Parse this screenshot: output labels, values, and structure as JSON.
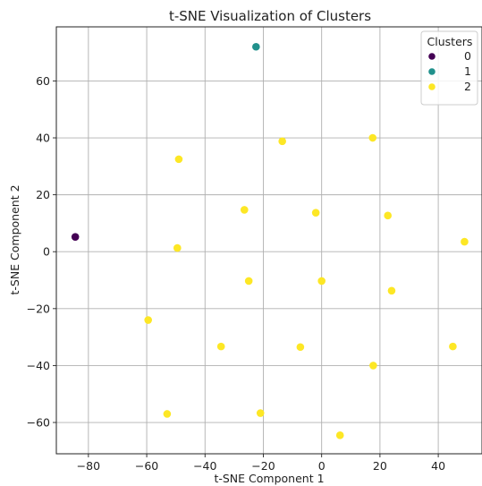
{
  "chart_data": {
    "type": "scatter",
    "title": "t-SNE Visualization of Clusters",
    "xlabel": "t-SNE Component 1",
    "ylabel": "t-SNE Component 2",
    "xlim": [
      -91,
      55
    ],
    "ylim": [
      -71,
      79
    ],
    "xticks": [
      -80,
      -60,
      -40,
      -20,
      0,
      20,
      40
    ],
    "yticks": [
      -60,
      -40,
      -20,
      0,
      20,
      40,
      60
    ],
    "xtick_labels": [
      "−80",
      "−60",
      "−40",
      "−20",
      "0",
      "20",
      "40"
    ],
    "ytick_labels": [
      "−60",
      "−40",
      "−20",
      "0",
      "20",
      "40",
      "60"
    ],
    "grid": true,
    "legend": {
      "title": "Clusters",
      "placement": "top-right"
    },
    "series": [
      {
        "name": "0",
        "color": "#440154",
        "points": [
          [
            -84.5,
            5.2
          ]
        ]
      },
      {
        "name": "1",
        "color": "#21918c",
        "points": [
          [
            -22.5,
            72.0
          ]
        ]
      },
      {
        "name": "2",
        "color": "#fde725",
        "points": [
          [
            -49.0,
            32.5
          ],
          [
            -13.5,
            38.8
          ],
          [
            17.5,
            40.0
          ],
          [
            -26.5,
            14.7
          ],
          [
            -2.0,
            13.7
          ],
          [
            22.7,
            12.7
          ],
          [
            -49.5,
            1.3
          ],
          [
            49.0,
            3.5
          ],
          [
            -25.0,
            -10.3
          ],
          [
            0.0,
            -10.3
          ],
          [
            24.0,
            -13.7
          ],
          [
            -59.5,
            -24.0
          ],
          [
            -34.5,
            -33.3
          ],
          [
            -7.3,
            -33.5
          ],
          [
            45.0,
            -33.3
          ],
          [
            17.7,
            -40.0
          ],
          [
            -53.0,
            -57.0
          ],
          [
            -21.0,
            -56.7
          ],
          [
            6.3,
            -64.5
          ]
        ]
      }
    ]
  }
}
